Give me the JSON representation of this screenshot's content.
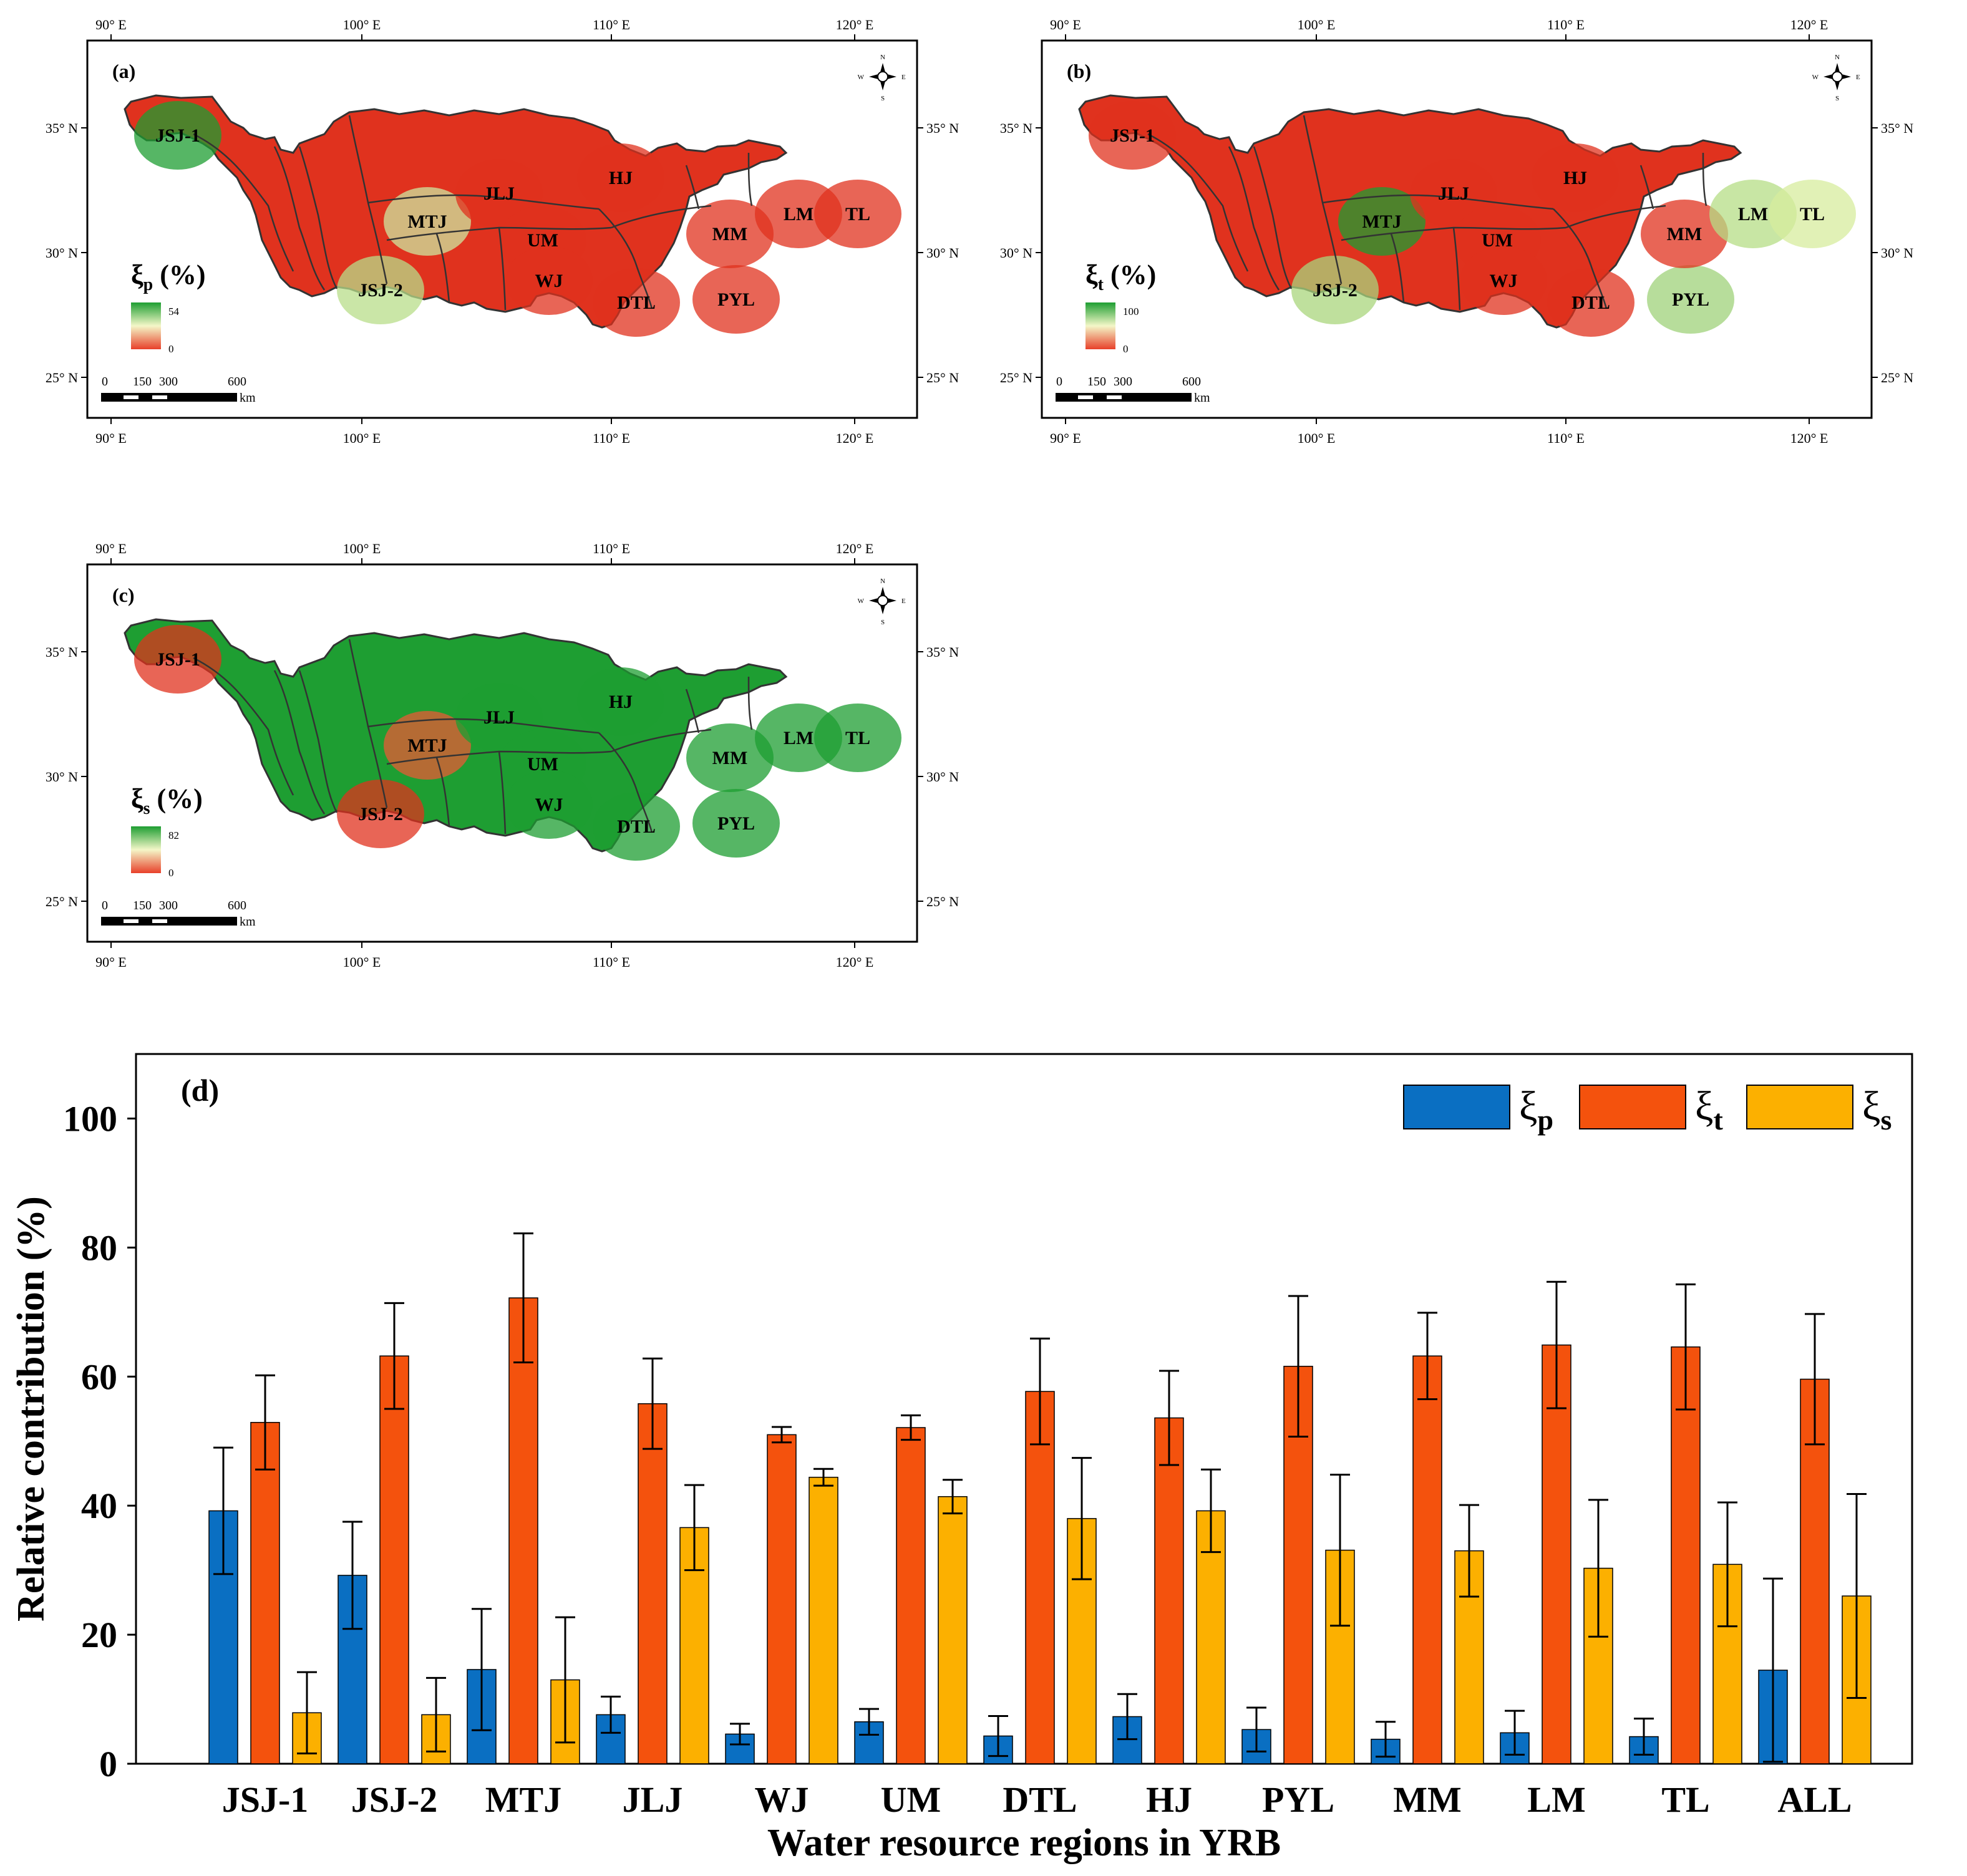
{
  "maps": [
    {
      "panel": "(a)",
      "metric_symbol": "ξ",
      "metric_sub": "p",
      "metric_unit": "(%)",
      "legend_max": "54",
      "legend_min": "0",
      "regions": [
        "JSJ-1",
        "MTJ",
        "JSJ-2",
        "JLJ",
        "HJ",
        "UM",
        "WJ",
        "DTL",
        "PYL",
        "MM",
        "LM",
        "TL"
      ],
      "scale_labels": [
        "0",
        "150",
        "300",
        "600",
        "km"
      ]
    },
    {
      "panel": "(b)",
      "metric_symbol": "ξ",
      "metric_sub": "t",
      "metric_unit": "(%)",
      "legend_max": "100",
      "legend_min": "0",
      "regions": [
        "JSJ-1",
        "MTJ",
        "JSJ-2",
        "JLJ",
        "HJ",
        "UM",
        "WJ",
        "DTL",
        "PYL",
        "MM",
        "LM",
        "TL"
      ],
      "scale_labels": [
        "0",
        "150",
        "300",
        "600",
        "km"
      ]
    },
    {
      "panel": "(c)",
      "metric_symbol": "ξ",
      "metric_sub": "s",
      "metric_unit": "(%)",
      "legend_max": "82",
      "legend_min": "0",
      "regions": [
        "JSJ-1",
        "MTJ",
        "JSJ-2",
        "JLJ",
        "HJ",
        "UM",
        "WJ",
        "DTL",
        "PYL",
        "MM",
        "LM",
        "TL"
      ],
      "scale_labels": [
        "0",
        "150",
        "300",
        "600",
        "km"
      ]
    }
  ],
  "map_axes": {
    "lon_ticks": [
      "90° E",
      "100° E",
      "110° E",
      "120° E"
    ],
    "lat_ticks": [
      "35° N",
      "30° N",
      "25° N"
    ],
    "compass": [
      "N",
      "E",
      "S",
      "W"
    ]
  },
  "colors": {
    "xi_p": "#0a6fc2",
    "xi_t": "#f4520d",
    "xi_s": "#fcb000",
    "map_green": "#1e9e32",
    "map_red": "#e0321e"
  },
  "chart_data": {
    "type": "bar",
    "panel": "(d)",
    "title": "",
    "xlabel": "Water resource regions in YRB",
    "ylabel": "Relative contribution (%)",
    "ylim": [
      0,
      110
    ],
    "yticks": [
      "0",
      "20",
      "40",
      "60",
      "80",
      "100"
    ],
    "categories": [
      "JSJ-1",
      "JSJ-2",
      "MTJ",
      "JLJ",
      "WJ",
      "UM",
      "DTL",
      "HJ",
      "PYL",
      "MM",
      "LM",
      "TL",
      "ALL"
    ],
    "legend_position": "top-right",
    "series": [
      {
        "name": "ξp",
        "symbol": "ξ",
        "sub": "p",
        "values": [
          39.2,
          29.2,
          14.6,
          7.6,
          4.6,
          6.5,
          4.3,
          7.3,
          5.3,
          3.8,
          4.8,
          4.2,
          14.5
        ],
        "err": [
          9.8,
          8.3,
          9.4,
          2.8,
          1.6,
          2.0,
          3.1,
          3.5,
          3.4,
          2.7,
          3.4,
          2.8,
          14.2
        ]
      },
      {
        "name": "ξt",
        "symbol": "ξ",
        "sub": "t",
        "values": [
          52.9,
          63.2,
          72.2,
          55.8,
          51.0,
          52.1,
          57.7,
          53.6,
          61.6,
          63.2,
          64.9,
          64.6,
          59.6
        ],
        "err": [
          7.3,
          8.2,
          10.0,
          7.0,
          1.2,
          1.9,
          8.2,
          7.3,
          10.9,
          6.7,
          9.8,
          9.7,
          10.1
        ]
      },
      {
        "name": "ξs",
        "symbol": "ξ",
        "sub": "s",
        "values": [
          7.9,
          7.6,
          13.0,
          36.6,
          44.4,
          41.4,
          38.0,
          39.2,
          33.1,
          33.0,
          30.3,
          30.9,
          26.0
        ],
        "err": [
          6.3,
          5.7,
          9.7,
          6.6,
          1.3,
          2.6,
          9.4,
          6.4,
          11.7,
          7.1,
          10.6,
          9.6,
          15.8
        ]
      }
    ]
  }
}
